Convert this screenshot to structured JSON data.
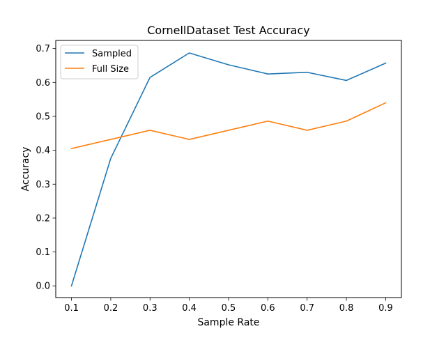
{
  "chart_data": {
    "type": "line",
    "title": "CornellDataset Test Accuracy",
    "xlabel": "Sample Rate",
    "ylabel": "Accuracy",
    "x": [
      0.1,
      0.2,
      0.3,
      0.4,
      0.5,
      0.6,
      0.7,
      0.8,
      0.9
    ],
    "xticks": [
      "0.1",
      "0.2",
      "0.3",
      "0.4",
      "0.5",
      "0.6",
      "0.7",
      "0.8",
      "0.9"
    ],
    "yticks": [
      "0.0",
      "0.1",
      "0.2",
      "0.3",
      "0.4",
      "0.5",
      "0.6",
      "0.7"
    ],
    "xlim": [
      0.06,
      0.94
    ],
    "ylim": [
      -0.0345,
      0.724
    ],
    "grid": false,
    "legend_position": "top-left",
    "series": [
      {
        "name": "Sampled",
        "color": "#1f77b4",
        "values": [
          0.0,
          0.376,
          0.615,
          0.687,
          0.652,
          0.625,
          0.63,
          0.606,
          0.657
        ]
      },
      {
        "name": "Full Size",
        "color": "#ff7f0e",
        "values": [
          0.405,
          0.432,
          0.459,
          0.432,
          0.459,
          0.486,
          0.459,
          0.486,
          0.54
        ]
      }
    ]
  }
}
